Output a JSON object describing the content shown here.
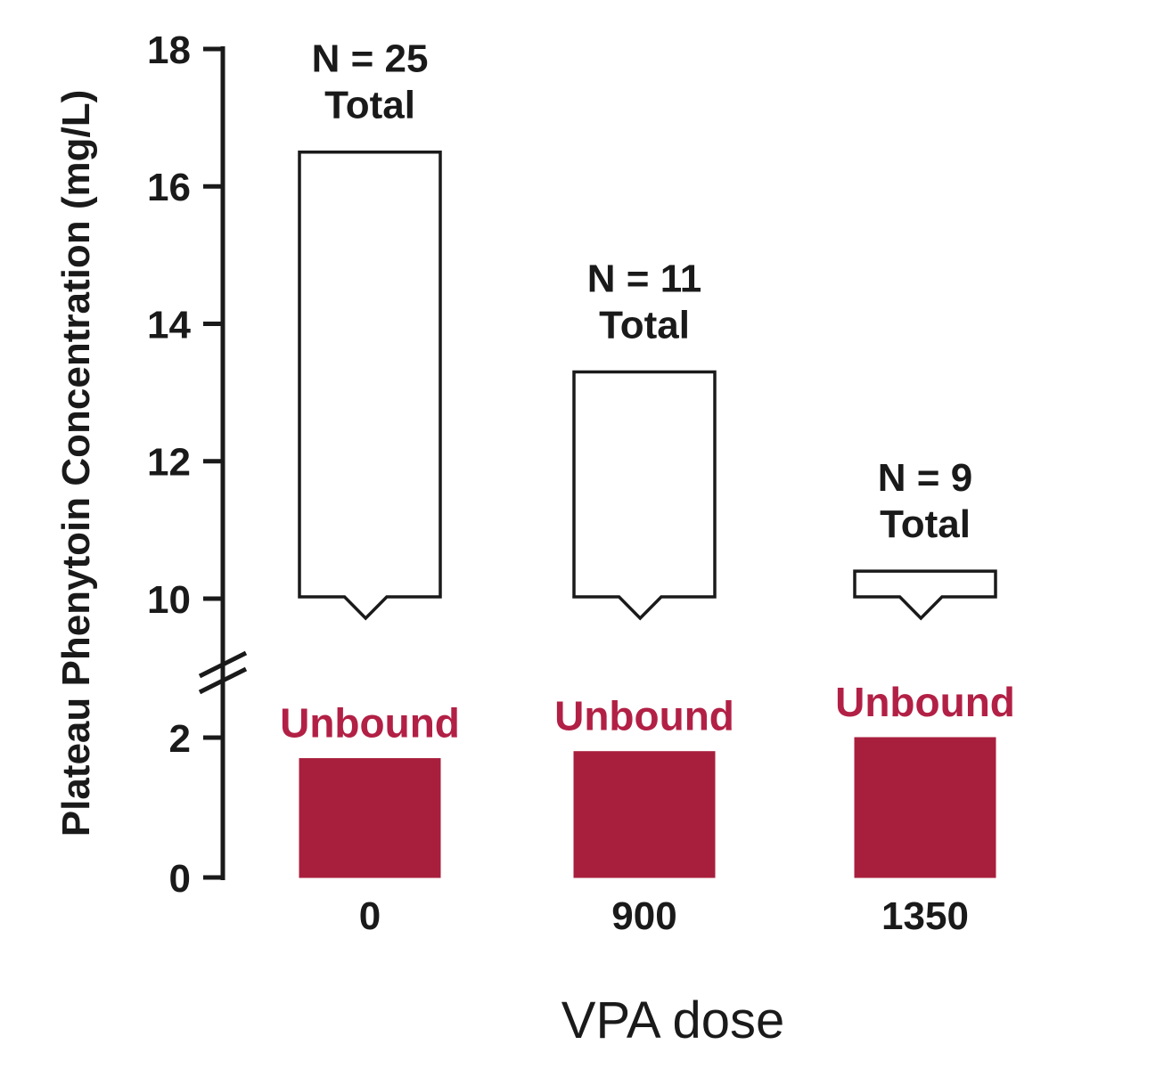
{
  "chart_data": {
    "type": "bar",
    "title": "",
    "xlabel": "VPA dose",
    "ylabel": "Plateau Phenytoin Concentration (mg/L)",
    "y_axis": {
      "upper_ticks": [
        18,
        16,
        14,
        12,
        10
      ],
      "lower_ticks": [
        2,
        0
      ],
      "upper_range": [
        10,
        18
      ],
      "lower_range": [
        0,
        2
      ],
      "break_between": [
        2,
        10
      ],
      "grid": false
    },
    "series_labels": {
      "total": "Total",
      "unbound": "Unbound"
    },
    "groups": [
      {
        "dose": "0",
        "n_label": "N = 25",
        "total": 16.5,
        "unbound": 1.7
      },
      {
        "dose": "900",
        "n_label": "N = 11",
        "total": 13.3,
        "unbound": 1.8
      },
      {
        "dose": "1350",
        "n_label": "N = 9",
        "total": 10.4,
        "unbound": 2.0
      }
    ],
    "legend_position": "none",
    "colors": {
      "unbound_fill": "#a81f3d",
      "unbound_label": "#b22045",
      "outline": "#1a1a1a",
      "text": "#1a1a1a",
      "total_fill": "#ffffff"
    }
  }
}
